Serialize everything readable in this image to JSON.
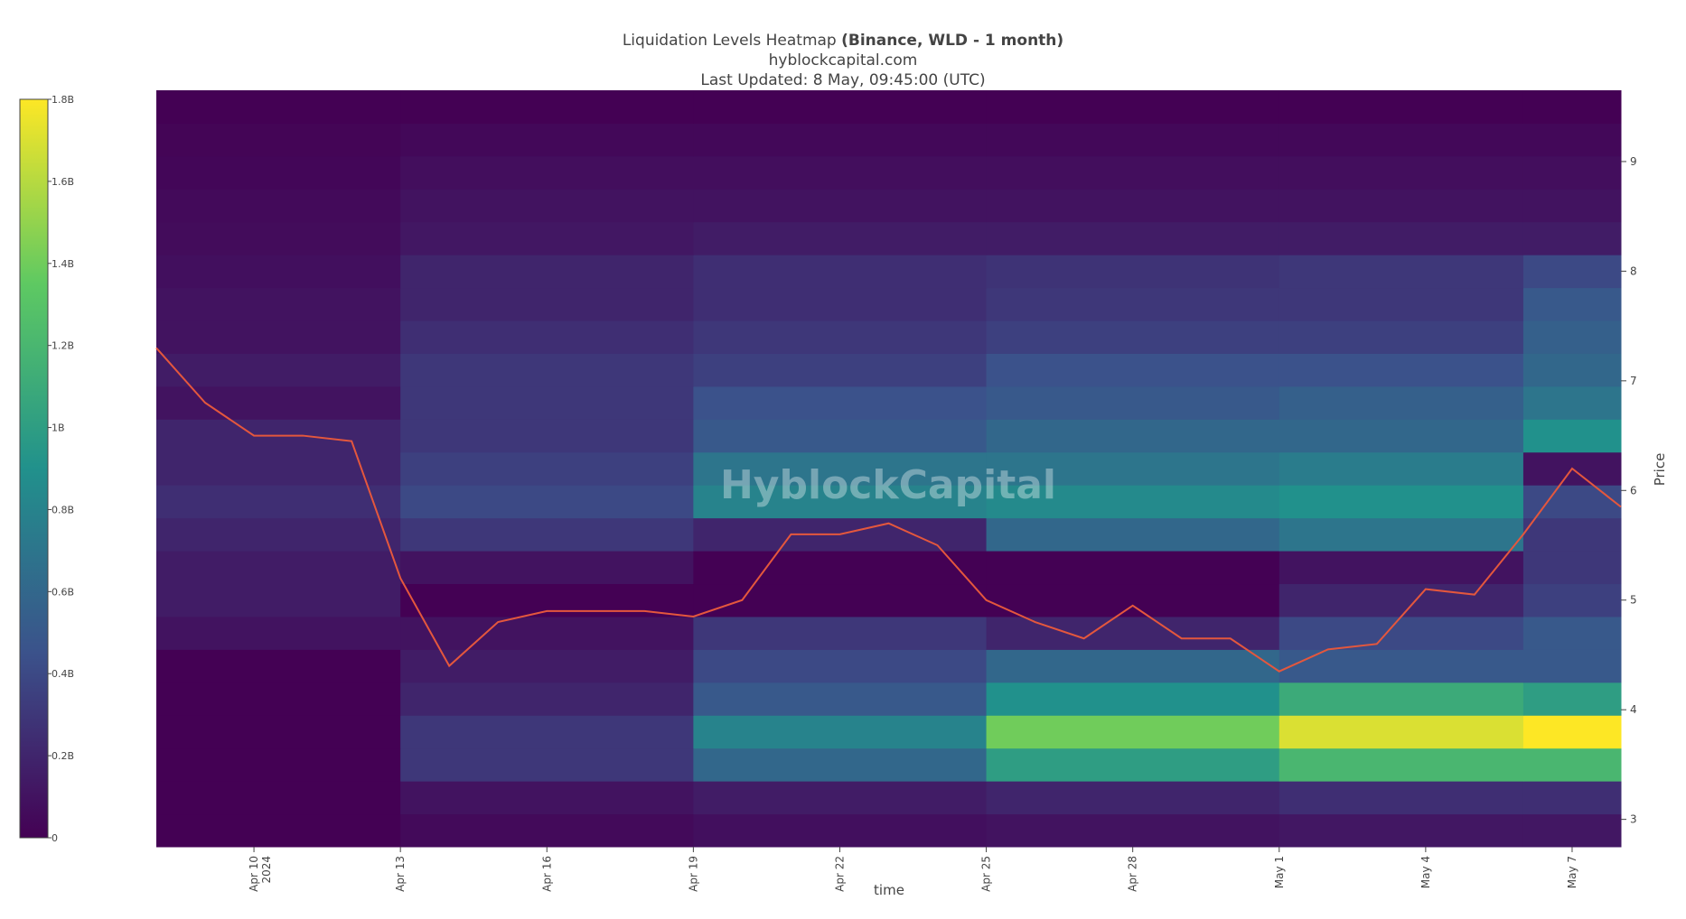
{
  "chart_data": {
    "type": "heatmap",
    "title": "Liquidation Levels Heatmap",
    "title_bold": "(Binance, WLD - 1 month)",
    "subtitle": "hyblockcapital.com",
    "updated": "Last Updated: 8 May, 09:45:00 (UTC)",
    "watermark": "HyblockCapital",
    "xlabel": "time",
    "ylabel": "Price",
    "xlim": [
      "2024-04-08",
      "2024-05-08"
    ],
    "xticks": [
      {
        "value": "2024-04-10",
        "label": "Apr 10"
      },
      {
        "value": "2024-04-13",
        "label": "Apr 13"
      },
      {
        "value": "2024-04-16",
        "label": "Apr 16"
      },
      {
        "value": "2024-04-19",
        "label": "Apr 19"
      },
      {
        "value": "2024-04-22",
        "label": "Apr 22"
      },
      {
        "value": "2024-04-25",
        "label": "Apr 25"
      },
      {
        "value": "2024-04-28",
        "label": "Apr 28"
      },
      {
        "value": "2024-05-01",
        "label": "May 1"
      },
      {
        "value": "2024-05-04",
        "label": "May 4"
      },
      {
        "value": "2024-05-07",
        "label": "May 7"
      }
    ],
    "xtick_year": "2024",
    "ylim": [
      2.75,
      9.65
    ],
    "yticks": [
      3,
      4,
      5,
      6,
      7,
      8,
      9
    ],
    "xbins": [
      "2024-04-08",
      "2024-04-13",
      "2024-04-19",
      "2024-04-25",
      "2024-05-01",
      "2024-05-06",
      "2024-05-08"
    ],
    "ybins": [
      2.75,
      3.05,
      3.35,
      3.65,
      3.95,
      4.25,
      4.55,
      4.85,
      5.15,
      5.45,
      5.75,
      6.05,
      6.35,
      6.65,
      6.95,
      7.25,
      7.55,
      7.85,
      8.15,
      8.45,
      8.75,
      9.05,
      9.35,
      9.65
    ],
    "z": [
      [
        0,
        0.05,
        0.08,
        0.1,
        0.12,
        0.12
      ],
      [
        0,
        0.1,
        0.15,
        0.2,
        0.25,
        0.25
      ],
      [
        0,
        0.3,
        0.6,
        1.0,
        1.2,
        1.2
      ],
      [
        0,
        0.3,
        0.8,
        1.4,
        1.7,
        1.8
      ],
      [
        0,
        0.2,
        0.5,
        0.9,
        1.1,
        1.0
      ],
      [
        0,
        0.15,
        0.4,
        0.6,
        0.5,
        0.5
      ],
      [
        0.1,
        0.1,
        0.3,
        0.2,
        0.4,
        0.5
      ],
      [
        0.15,
        0,
        0,
        0,
        0.2,
        0.35
      ],
      [
        0.15,
        0.1,
        0,
        0,
        0.1,
        0.3
      ],
      [
        0.2,
        0.3,
        0.2,
        0.6,
        0.7,
        0.3
      ],
      [
        0.25,
        0.4,
        0.8,
        0.85,
        0.9,
        0.4
      ],
      [
        0.2,
        0.35,
        0.7,
        0.7,
        0.75,
        0.1
      ],
      [
        0.2,
        0.3,
        0.5,
        0.6,
        0.6,
        0.9
      ],
      [
        0.1,
        0.3,
        0.45,
        0.5,
        0.55,
        0.7
      ],
      [
        0.15,
        0.3,
        0.35,
        0.45,
        0.45,
        0.6
      ],
      [
        0.1,
        0.25,
        0.3,
        0.35,
        0.35,
        0.55
      ],
      [
        0.1,
        0.2,
        0.25,
        0.3,
        0.3,
        0.5
      ],
      [
        0.08,
        0.2,
        0.25,
        0.28,
        0.3,
        0.4
      ],
      [
        0.06,
        0.12,
        0.15,
        0.15,
        0.15,
        0.15
      ],
      [
        0.05,
        0.1,
        0.1,
        0.1,
        0.1,
        0.1
      ],
      [
        0.03,
        0.07,
        0.07,
        0.07,
        0.07,
        0.07
      ],
      [
        0.02,
        0.04,
        0.04,
        0.04,
        0.04,
        0.04
      ],
      [
        0,
        0,
        0,
        0,
        0,
        0
      ]
    ],
    "zlim": [
      0,
      1.8
    ],
    "colorscale": [
      "#440154",
      "#3b528b",
      "#21918c",
      "#5ec962",
      "#fde725"
    ],
    "colorbar_ticks": [
      0,
      {
        "value": 0.2,
        "label": "0.2B"
      },
      {
        "value": 0.4,
        "label": "0.4B"
      },
      {
        "value": 0.6,
        "label": "0.6B"
      },
      {
        "value": 0.8,
        "label": "0.8B"
      },
      {
        "value": 1,
        "label": "1B"
      },
      {
        "value": 1.2,
        "label": "1.2B"
      },
      {
        "value": 1.4,
        "label": "1.4B"
      },
      {
        "value": 1.6,
        "label": "1.6B"
      },
      {
        "value": 1.8,
        "label": "1.8B"
      }
    ],
    "price": {
      "color": "#e4573d",
      "x": [
        "2024-04-08",
        "2024-04-09",
        "2024-04-10",
        "2024-04-11",
        "2024-04-12",
        "2024-04-13",
        "2024-04-14",
        "2024-04-15",
        "2024-04-16",
        "2024-04-17",
        "2024-04-18",
        "2024-04-19",
        "2024-04-20",
        "2024-04-21",
        "2024-04-22",
        "2024-04-23",
        "2024-04-24",
        "2024-04-25",
        "2024-04-26",
        "2024-04-27",
        "2024-04-28",
        "2024-04-29",
        "2024-04-30",
        "2024-05-01",
        "2024-05-02",
        "2024-05-03",
        "2024-05-04",
        "2024-05-05",
        "2024-05-06",
        "2024-05-07",
        "2024-05-08"
      ],
      "values": [
        7.3,
        6.8,
        6.5,
        6.5,
        6.45,
        5.2,
        4.4,
        4.8,
        4.9,
        4.9,
        4.9,
        4.85,
        5.0,
        5.6,
        5.6,
        5.7,
        5.5,
        5.0,
        4.8,
        4.65,
        4.95,
        4.65,
        4.65,
        4.35,
        4.55,
        4.6,
        5.1,
        5.05,
        5.6,
        6.2,
        5.85
      ]
    }
  }
}
